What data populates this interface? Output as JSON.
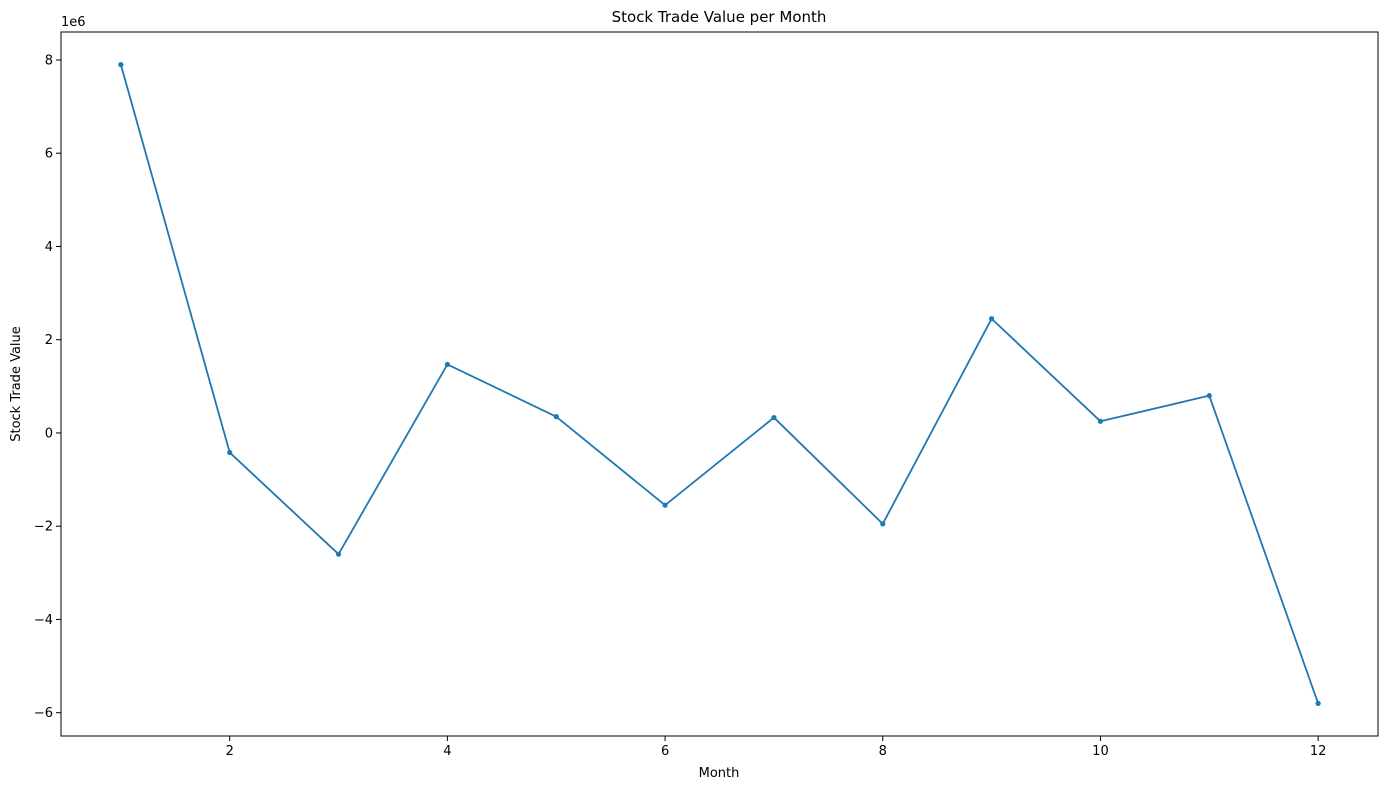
{
  "chart_data": {
    "type": "line",
    "title": "Stock Trade Value per Month",
    "xlabel": "Month",
    "ylabel": "Stock Trade Value",
    "y_offset_label": "1e6",
    "xlim": [
      0.45,
      12.55
    ],
    "ylim": [
      -6.5,
      8.6
    ],
    "y_scale_factor": 1000000,
    "x_ticks": [
      2,
      4,
      6,
      8,
      10,
      12
    ],
    "y_ticks": [
      -6,
      -4,
      -2,
      0,
      2,
      4,
      6,
      8
    ],
    "y_tick_labels": [
      "−6",
      "−4",
      "−2",
      "0",
      "2",
      "4",
      "6",
      "8"
    ],
    "grid": false,
    "legend": false,
    "series": [
      {
        "color": "#1f77b4",
        "marker": "circle",
        "x": [
          1,
          2,
          3,
          4,
          5,
          6,
          7,
          8,
          9,
          10,
          11,
          12
        ],
        "y": [
          7900000,
          -420000,
          -2600000,
          1470000,
          350000,
          -1550000,
          330000,
          -1950000,
          2450000,
          250000,
          800000,
          -5800000
        ]
      }
    ]
  }
}
